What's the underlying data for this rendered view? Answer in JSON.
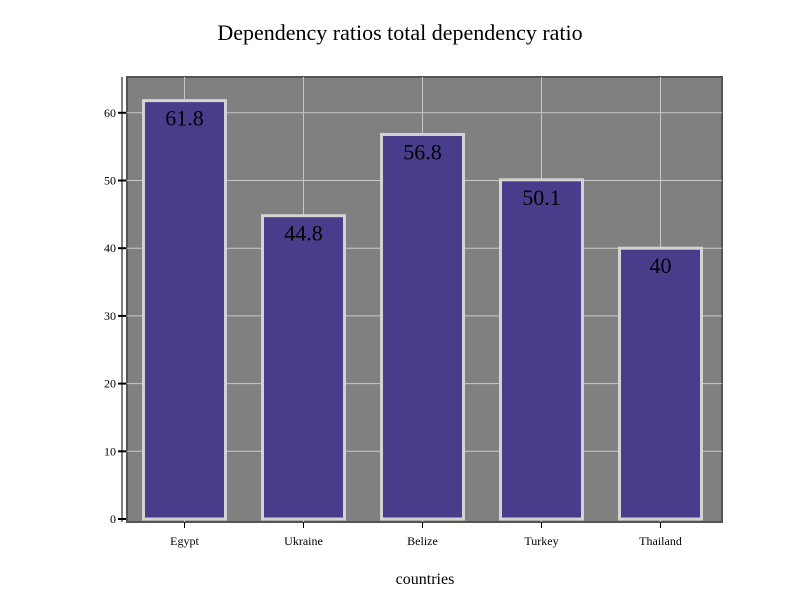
{
  "chart_data": {
    "type": "bar",
    "title": "Dependency ratios total dependency ratio",
    "xlabel": "countries",
    "ylabel": "",
    "categories": [
      "Egypt",
      "Ukraine",
      "Belize",
      "Turkey",
      "Thailand"
    ],
    "values": [
      61.8,
      44.8,
      56.8,
      50.1,
      40
    ],
    "value_labels": [
      "61.8",
      "44.8",
      "56.8",
      "50.1",
      "40"
    ],
    "ylim": [
      0,
      65
    ],
    "yticks": [
      0,
      10,
      20,
      30,
      40,
      50,
      60
    ],
    "ytick_labels": [
      "0",
      "10",
      "20",
      "30",
      "40",
      "50",
      "60"
    ],
    "grid": true,
    "legend": "none",
    "colors": {
      "plot_background": "#808080",
      "bar_fill": "#483D8B",
      "bar_edge": "#D3D3D3",
      "grid": "#C8C8C8",
      "frame": "#555555"
    }
  }
}
